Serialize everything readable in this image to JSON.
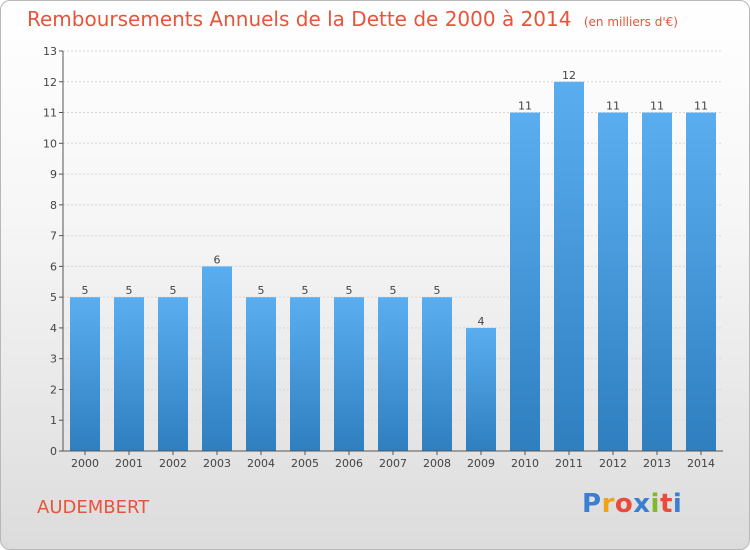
{
  "title": "Remboursements Annuels de la Dette de 2000 à 2014",
  "subtitle": "(en milliers d'€)",
  "place_name": "AUDEMBERT",
  "logo": {
    "letters": [
      "P",
      "r",
      "o",
      "x",
      "i",
      "t",
      "i"
    ],
    "colors": [
      "#3a7fd0",
      "#f2a21a",
      "#e84c3a",
      "#3a7fd0",
      "#7dbb2a",
      "#e84c3a",
      "#3a7fd0"
    ]
  },
  "colors": {
    "title": "#e8543a",
    "bar_light": "#5aaef0",
    "bar_dark": "#2f7fbf"
  },
  "chart_data": {
    "type": "bar",
    "categories": [
      "2000",
      "2001",
      "2002",
      "2003",
      "2004",
      "2005",
      "2006",
      "2007",
      "2008",
      "2009",
      "2010",
      "2011",
      "2012",
      "2013",
      "2014"
    ],
    "values": [
      5,
      5,
      5,
      6,
      5,
      5,
      5,
      5,
      5,
      4,
      11,
      12,
      11,
      11,
      11
    ],
    "title": "Remboursements Annuels de la Dette de 2000 à 2014",
    "subtitle": "(en milliers d'€)",
    "xlabel": "",
    "ylabel": "",
    "ylim": [
      0,
      13
    ],
    "yticks": [
      0,
      1,
      2,
      3,
      4,
      5,
      6,
      7,
      8,
      9,
      10,
      11,
      12,
      13
    ],
    "grid": true,
    "data_labels": true
  }
}
